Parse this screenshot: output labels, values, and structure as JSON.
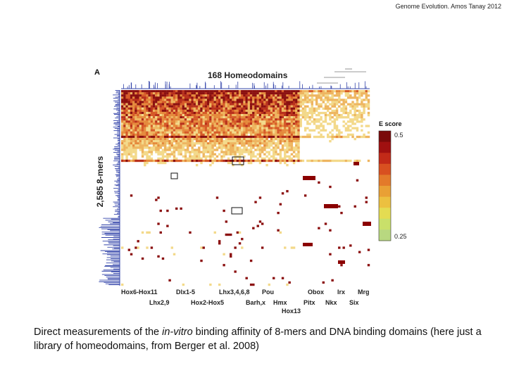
{
  "header": "Genome Evolution. Amos Tanay 2012",
  "figure": {
    "panel_letter": "A",
    "column_title": "168 Homeodomains",
    "row_title": "2,585 8-mers",
    "groups_top": [
      "Hox6-Hox11",
      "Dlx1-5",
      "Lhx3,4,6,8",
      "Pou",
      "Obox",
      "Irx",
      "Mrg"
    ],
    "groups_bottom": [
      "Lhx2,9",
      "Hox2-Hox5",
      "Barh,x",
      "Hmx",
      "Pitx",
      "Nkx",
      "Six"
    ],
    "group_extra": "Hox13",
    "legend": {
      "title": "E score",
      "max_label": "0.5",
      "min_label": "0.25"
    },
    "colors": {
      "dendrogram": "#3344aa",
      "high": "#8b0000",
      "mid": "#e06020",
      "low": "#d8e060",
      "none": "#ffffff"
    }
  },
  "caption": {
    "part1": "Direct measurements of the ",
    "italic": "in-vitro",
    "part2": " binding affinity of 8-mers and DNA binding domains (here just a library of homeodomains, from Berger et al. 2008)"
  }
}
